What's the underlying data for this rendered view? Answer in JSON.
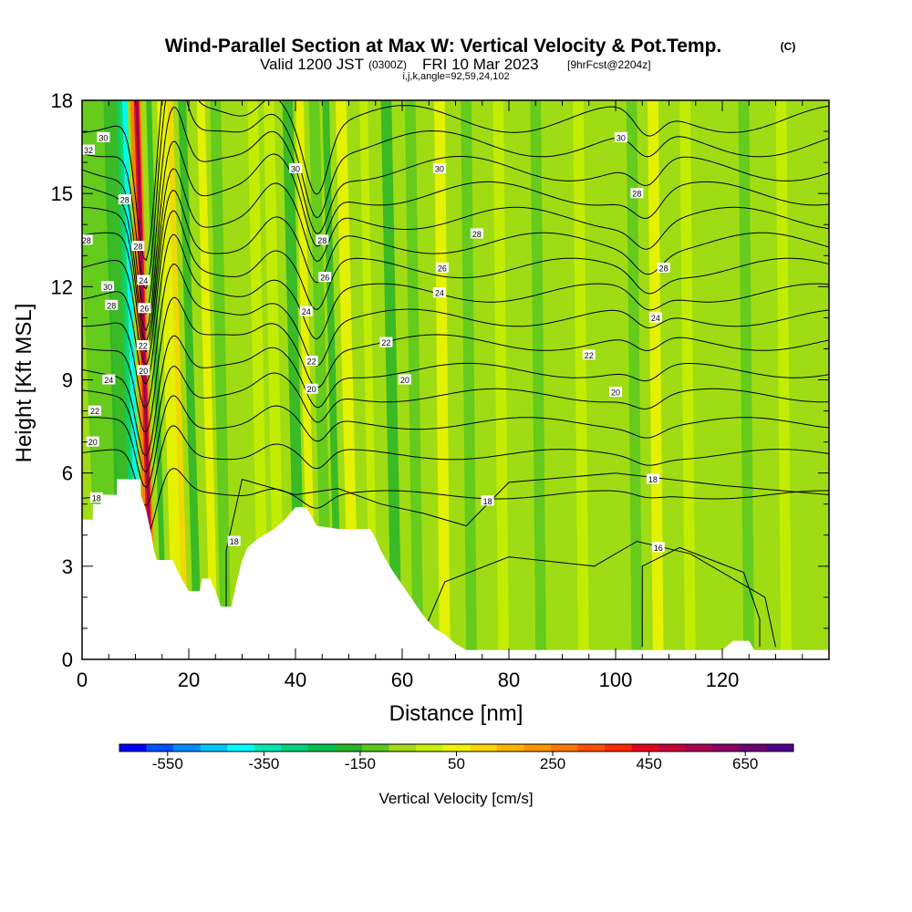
{
  "chart_data": {
    "type": "contour",
    "title": "Wind-Parallel Section at Max W: Vertical Velocity & Pot.Temp.",
    "title_mark": "(C)",
    "subtitle_valid": "Valid 1200 JST",
    "subtitle_utc": "(0300Z)",
    "subtitle_date": "FRI 10 Mar 2023",
    "subtitle_fcst": "[9hrFcst@2204z]",
    "subtitle_ijk": "i,j,k,angle=92,59,24,102",
    "xlabel": "Distance [nm]",
    "ylabel": "Height [Kft MSL]",
    "xlim": [
      0,
      140
    ],
    "ylim": [
      0,
      18
    ],
    "x_ticks": [
      "0",
      "20",
      "40",
      "60",
      "80",
      "100",
      "120"
    ],
    "y_ticks": [
      "0",
      "3",
      "6",
      "9",
      "12",
      "15",
      "18"
    ],
    "colorbar_label": "Vertical Velocity [cm/s]",
    "colorbar_ticks": [
      "-550",
      "-350",
      "-150",
      "50",
      "250",
      "450",
      "650"
    ],
    "colorbar_colors": [
      "#0000ff",
      "#0050ff",
      "#008cff",
      "#00c8ff",
      "#00ffff",
      "#00e6b4",
      "#00d278",
      "#00c050",
      "#28b428",
      "#5ac81e",
      "#a0dc14",
      "#c8f000",
      "#f0f500",
      "#ffd700",
      "#ffb400",
      "#ff9600",
      "#ff7800",
      "#ff5000",
      "#ff2800",
      "#e6001e",
      "#c8003c",
      "#aa0050",
      "#8c0064",
      "#6e0078",
      "#50008c"
    ],
    "isentrope_labels": [
      {
        "text": "32",
        "x": 1.2,
        "y": 16.4
      },
      {
        "text": "30",
        "x": 4.0,
        "y": 16.8
      },
      {
        "text": "28",
        "x": 0.8,
        "y": 13.5
      },
      {
        "text": "30",
        "x": 4.8,
        "y": 12.0
      },
      {
        "text": "28",
        "x": 8.0,
        "y": 14.8
      },
      {
        "text": "28",
        "x": 5.5,
        "y": 11.4
      },
      {
        "text": "28",
        "x": 10.5,
        "y": 13.3
      },
      {
        "text": "24",
        "x": 11.5,
        "y": 12.2
      },
      {
        "text": "26",
        "x": 11.7,
        "y": 11.3
      },
      {
        "text": "22",
        "x": 11.4,
        "y": 10.1
      },
      {
        "text": "20",
        "x": 11.5,
        "y": 9.3
      },
      {
        "text": "24",
        "x": 5.0,
        "y": 9.0
      },
      {
        "text": "22",
        "x": 2.4,
        "y": 8.0
      },
      {
        "text": "20",
        "x": 2.0,
        "y": 7.0
      },
      {
        "text": "18",
        "x": 2.7,
        "y": 5.2
      },
      {
        "text": "30",
        "x": 40.0,
        "y": 15.8
      },
      {
        "text": "28",
        "x": 45.0,
        "y": 13.5
      },
      {
        "text": "26",
        "x": 45.5,
        "y": 12.3
      },
      {
        "text": "24",
        "x": 42.0,
        "y": 11.2
      },
      {
        "text": "22",
        "x": 43.0,
        "y": 9.6
      },
      {
        "text": "20",
        "x": 43.0,
        "y": 8.7
      },
      {
        "text": "30",
        "x": 67.0,
        "y": 15.8
      },
      {
        "text": "28",
        "x": 74.0,
        "y": 13.7
      },
      {
        "text": "26",
        "x": 67.5,
        "y": 12.6
      },
      {
        "text": "24",
        "x": 67.0,
        "y": 11.8
      },
      {
        "text": "22",
        "x": 57.0,
        "y": 10.2
      },
      {
        "text": "20",
        "x": 60.5,
        "y": 9.0
      },
      {
        "text": "30",
        "x": 101.0,
        "y": 16.8
      },
      {
        "text": "28",
        "x": 104.0,
        "y": 15.0
      },
      {
        "text": "28",
        "x": 109.0,
        "y": 12.6
      },
      {
        "text": "24",
        "x": 107.5,
        "y": 11.0
      },
      {
        "text": "22",
        "x": 95.0,
        "y": 9.8
      },
      {
        "text": "20",
        "x": 100.0,
        "y": 8.6
      },
      {
        "text": "18",
        "x": 76.0,
        "y": 5.1
      },
      {
        "text": "18",
        "x": 107.0,
        "y": 5.8
      },
      {
        "text": "16",
        "x": 108.0,
        "y": 3.6
      },
      {
        "text": "18",
        "x": 28.5,
        "y": 3.8
      }
    ]
  }
}
